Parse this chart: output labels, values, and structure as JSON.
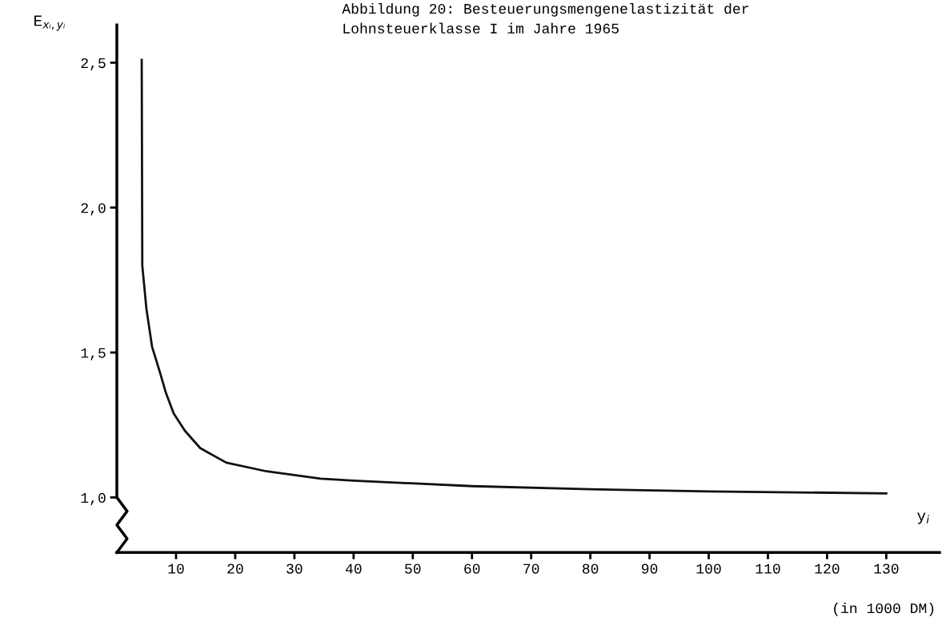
{
  "chart_data": {
    "type": "line",
    "title": "Abbildung 20: Besteuerungsmengenelastizität der\nLohnsteuerklasse I im Jahre 1965",
    "ylabel": "E$_{xᵢ,yᵢ}$",
    "xlabel": "y$_{i}$",
    "annotations": [
      "(in 1000 DM)"
    ],
    "x": [
      4.2,
      4.3,
      5.0,
      5.95,
      7.3,
      8.3,
      9.6,
      11.5,
      14.1,
      18.5,
      25.3,
      34.4,
      40,
      60,
      80,
      100,
      130
    ],
    "series": [
      {
        "color": "#111111",
        "values": [
          2.51,
          1.8,
          1.65,
          1.52,
          1.43,
          1.36,
          1.29,
          1.23,
          1.17,
          1.12,
          1.09,
          1.065,
          1.058,
          1.039,
          1.028,
          1.021,
          1.014
        ]
      }
    ],
    "xlim": [
      0,
      139
    ],
    "xticks": [
      10,
      20,
      30,
      40,
      50,
      60,
      70,
      80,
      90,
      100,
      110,
      120,
      130
    ],
    "ylim": [
      0.81,
      2.63
    ],
    "yticks": [
      {
        "value": 1.0,
        "label": "1,0"
      },
      {
        "value": 1.5,
        "label": "1,5"
      },
      {
        "value": 2.0,
        "label": "2,0"
      },
      {
        "value": 2.5,
        "label": "2,5"
      }
    ],
    "grid": false,
    "legend": false,
    "marker": "none",
    "line_style": "solid"
  }
}
